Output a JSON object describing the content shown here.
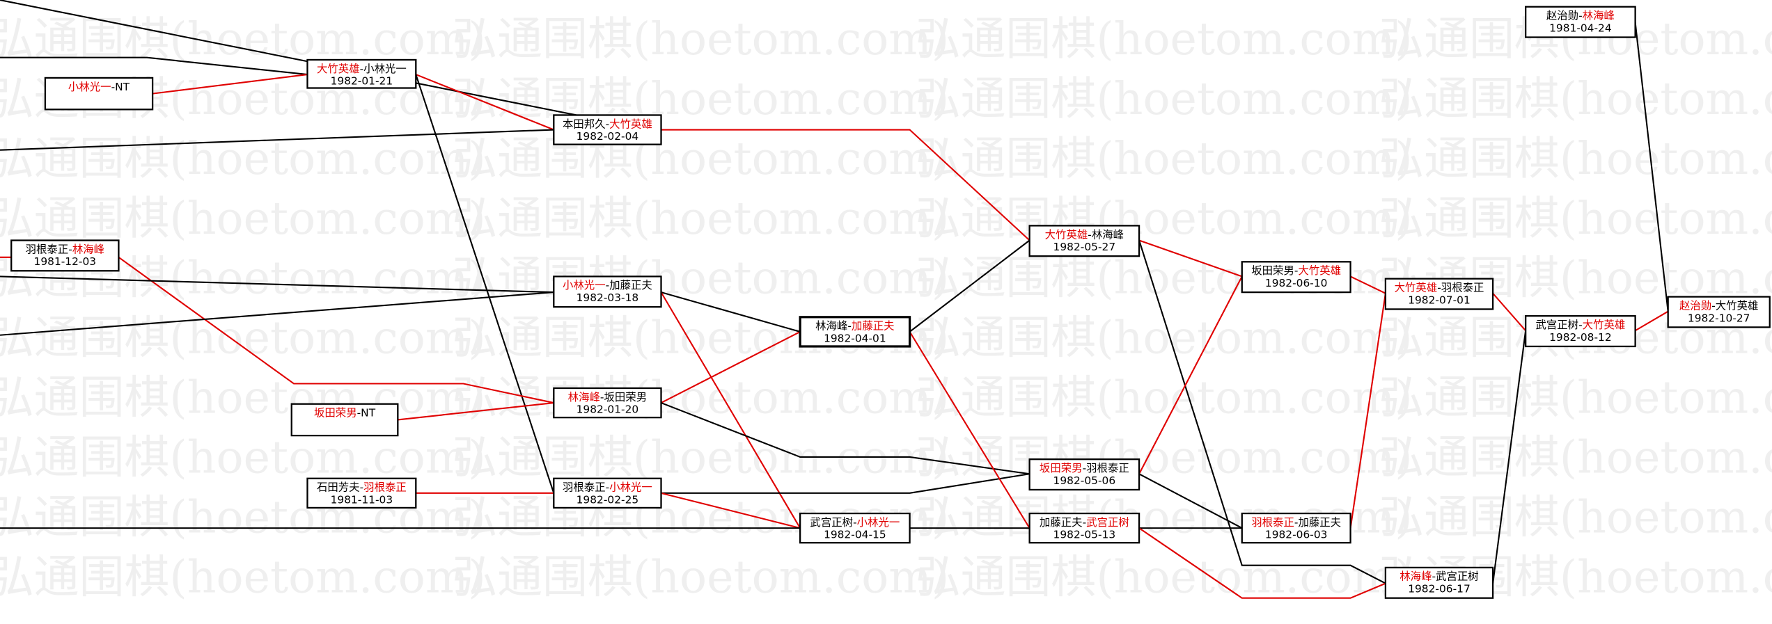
{
  "watermark": "弘通围棋(hoetom.com)",
  "colors": {
    "winner": "#e00000",
    "loser": "#000000",
    "winner_path": "#e00000",
    "other_path": "#000000"
  },
  "games": [
    {
      "players": [
        "大竹英雄",
        "小林光一"
      ],
      "date": "1982-01-21",
      "winner": 0
    },
    {
      "players": [
        "小林光一",
        "NT"
      ],
      "date": "",
      "winner": 0
    },
    {
      "players": [
        "本田邦久",
        "大竹英雄"
      ],
      "date": "1982-02-04",
      "winner": 1
    },
    {
      "players": [
        "羽根泰正",
        "林海峰"
      ],
      "date": "1981-12-03",
      "winner": 1
    },
    {
      "players": [
        "小林光一",
        "加藤正夫"
      ],
      "date": "1982-03-18",
      "winner": 0
    },
    {
      "players": [
        "林海峰",
        "加藤正夫"
      ],
      "date": "1982-04-01",
      "winner": 1
    },
    {
      "players": [
        "林海峰",
        "坂田荣男"
      ],
      "date": "1982-01-20",
      "winner": 0
    },
    {
      "players": [
        "坂田荣男",
        "NT"
      ],
      "date": "",
      "winner": 0
    },
    {
      "players": [
        "石田芳夫",
        "羽根泰正"
      ],
      "date": "1981-11-03",
      "winner": 1
    },
    {
      "players": [
        "羽根泰正",
        "小林光一"
      ],
      "date": "1982-02-25",
      "winner": 1
    },
    {
      "players": [
        "武宫正树",
        "小林光一"
      ],
      "date": "1982-04-15",
      "winner": 1
    },
    {
      "players": [
        "大竹英雄",
        "林海峰"
      ],
      "date": "1982-05-27",
      "winner": 0
    },
    {
      "players": [
        "坂田荣男",
        "羽根泰正"
      ],
      "date": "1982-05-06",
      "winner": 0
    },
    {
      "players": [
        "加藤正夫",
        "武宫正树"
      ],
      "date": "1982-05-13",
      "winner": 1
    },
    {
      "players": [
        "坂田荣男",
        "大竹英雄"
      ],
      "date": "1982-06-10",
      "winner": 1
    },
    {
      "players": [
        "羽根泰正",
        "加藤正夫"
      ],
      "date": "1982-06-03",
      "winner": 0
    },
    {
      "players": [
        "大竹英雄",
        "羽根泰正"
      ],
      "date": "1982-07-01",
      "winner": 0
    },
    {
      "players": [
        "林海峰",
        "武宫正树"
      ],
      "date": "1982-06-17",
      "winner": 0
    },
    {
      "players": [
        "武宫正树",
        "大竹英雄"
      ],
      "date": "1982-08-12",
      "winner": 1
    },
    {
      "players": [
        "赵治勋",
        "林海峰"
      ],
      "date": "1981-04-24",
      "winner": 1
    },
    {
      "players": [
        "赵治勋",
        "大竹英雄"
      ],
      "date": "1982-10-27",
      "winner": 0
    }
  ]
}
